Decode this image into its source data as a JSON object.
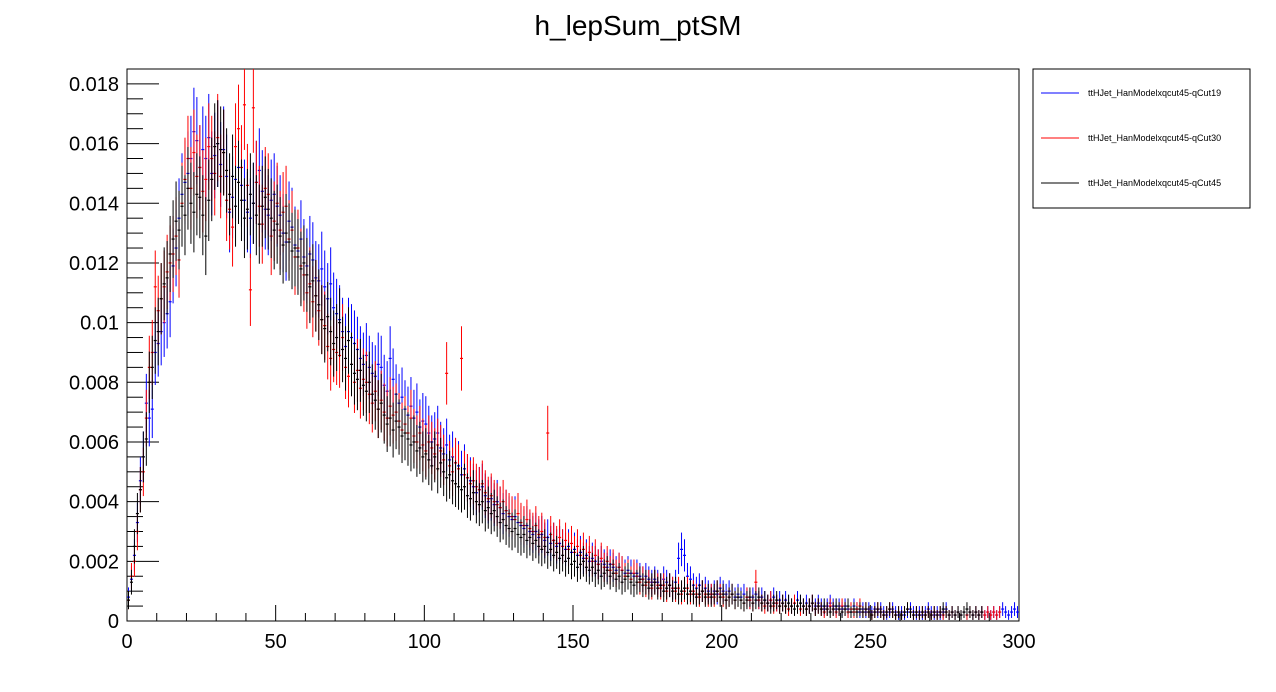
{
  "chart_data": {
    "type": "scatter",
    "title": "h_lepSum_ptSM",
    "xlabel": "",
    "ylabel": "",
    "xlim": [
      0,
      300
    ],
    "ylim": [
      0,
      0.0185
    ],
    "x_ticks": [
      0,
      50,
      100,
      150,
      200,
      250,
      300
    ],
    "x_tick_labels": [
      "0",
      "50",
      "100",
      "150",
      "200",
      "250",
      "300"
    ],
    "y_ticks": [
      0,
      0.002,
      0.004,
      0.006,
      0.008,
      0.01,
      0.012,
      0.014,
      0.016,
      0.018
    ],
    "y_tick_labels": [
      "0",
      "0.002",
      "0.004",
      "0.006",
      "0.008",
      "0.01",
      "0.012",
      "0.014",
      "0.016",
      "0.018"
    ],
    "bin_width": 1,
    "x_start": 0.5,
    "grid": false,
    "legend_position": "top-right outside plot",
    "series": [
      {
        "name": "ttHJet_HanModelxqcut45-qCut19",
        "color": "#0000ff",
        "values": [
          0.0008,
          0.0014,
          0.0022,
          0.0033,
          0.0047,
          0.0055,
          0.0073,
          0.0068,
          0.0071,
          0.009,
          0.0093,
          0.0097,
          0.01,
          0.0103,
          0.0107,
          0.0119,
          0.0125,
          0.0135,
          0.0143,
          0.0147,
          0.015,
          0.0155,
          0.0164,
          0.0161,
          0.0152,
          0.0158,
          0.0155,
          0.0162,
          0.015,
          0.0156,
          0.016,
          0.0153,
          0.0158,
          0.0149,
          0.0137,
          0.0142,
          0.0148,
          0.0152,
          0.0146,
          0.0141,
          0.0137,
          0.0135,
          0.014,
          0.0147,
          0.0151,
          0.0144,
          0.0138,
          0.0136,
          0.0141,
          0.0143,
          0.0139,
          0.0136,
          0.013,
          0.0127,
          0.0134,
          0.0132,
          0.0126,
          0.0124,
          0.0128,
          0.0122,
          0.0119,
          0.0123,
          0.0121,
          0.0115,
          0.0114,
          0.0118,
          0.0112,
          0.0108,
          0.0113,
          0.0105,
          0.0103,
          0.0101,
          0.0097,
          0.0092,
          0.0097,
          0.0095,
          0.0093,
          0.0091,
          0.0088,
          0.0086,
          0.0089,
          0.0085,
          0.0083,
          0.0082,
          0.0086,
          0.0085,
          0.0079,
          0.0077,
          0.0088,
          0.0081,
          0.0076,
          0.0073,
          0.0075,
          0.0071,
          0.0069,
          0.0072,
          0.0068,
          0.007,
          0.0065,
          0.0067,
          0.0066,
          0.0063,
          0.006,
          0.0061,
          0.0063,
          0.0058,
          0.0056,
          0.0059,
          0.0054,
          0.0055,
          0.0053,
          0.0052,
          0.0049,
          0.0051,
          0.0048,
          0.0047,
          0.0045,
          0.0043,
          0.0044,
          0.0045,
          0.0042,
          0.004,
          0.0041,
          0.0039,
          0.004,
          0.0038,
          0.0036,
          0.0037,
          0.0035,
          0.0034,
          0.0035,
          0.0033,
          0.0032,
          0.0031,
          0.0032,
          0.003,
          0.0029,
          0.003,
          0.0028,
          0.0029,
          0.0027,
          0.0028,
          0.0026,
          0.0027,
          0.0025,
          0.0026,
          0.0025,
          0.0024,
          0.0025,
          0.0023,
          0.0024,
          0.0022,
          0.0023,
          0.0021,
          0.0022,
          0.002,
          0.0021,
          0.002,
          0.0019,
          0.002,
          0.0019,
          0.0018,
          0.0019,
          0.0018,
          0.0017,
          0.0018,
          0.0017,
          0.0016,
          0.0017,
          0.0016,
          0.0015,
          0.0016,
          0.0015,
          0.0014,
          0.0015,
          0.0014,
          0.0013,
          0.0014,
          0.0013,
          0.0012,
          0.0014,
          0.0013,
          0.0012,
          0.0011,
          0.0013,
          0.0021,
          0.0024,
          0.0022,
          0.0015,
          0.0014,
          0.0012,
          0.0011,
          0.0012,
          0.001,
          0.0011,
          0.001,
          0.0009,
          0.001,
          0.0009,
          0.0011,
          0.001,
          0.0009,
          0.001,
          0.0009,
          0.0008,
          0.0009,
          0.0008,
          0.0009,
          0.0008,
          0.0007,
          0.0008,
          0.0009,
          0.0007,
          0.0008,
          0.0007,
          0.0006,
          0.0007,
          0.0008,
          0.0006,
          0.0007,
          0.0006,
          0.0007,
          0.0006,
          0.0005,
          0.0006,
          0.0007,
          0.0006,
          0.0005,
          0.0006,
          0.0005,
          0.0006,
          0.0005,
          0.0006,
          0.0005,
          0.0004,
          0.0005,
          0.0006,
          0.0005,
          0.0004,
          0.0005,
          0.0004,
          0.0005,
          0.0004,
          0.0003,
          0.0005,
          0.0004,
          0.0003,
          0.0004,
          0.0003,
          0.0004,
          0.0003,
          0.0004,
          0.0003,
          0.0004,
          0.0003,
          0.0002,
          0.0003,
          0.0004,
          0.0003,
          0.0002,
          0.0003,
          0.0002,
          0.0003,
          0.0004,
          0.0003,
          0.0002,
          0.0003,
          0.0002,
          0.0003,
          0.0004,
          0.0003,
          0.0002,
          0.0003,
          0.0002,
          0.0003,
          0.0004,
          0.0002,
          0.0003,
          0.0002,
          0.0003,
          0.0002,
          0.0003,
          0.0002,
          0.0003,
          0.0002,
          0.0003,
          0.0002,
          0.0003,
          0.0002,
          0.0003,
          0.0002,
          0.0003,
          0.0002,
          0.0003,
          0.0004,
          0.0003,
          0.0002,
          0.0003,
          0.0004,
          0.0003
        ]
      },
      {
        "name": "ttHJet_HanModelxqcut45-qCut30",
        "color": "#ff0000",
        "values": [
          0.0007,
          0.0015,
          0.002,
          0.003,
          0.0044,
          0.005,
          0.0068,
          0.0085,
          0.009,
          0.0112,
          0.0104,
          0.0108,
          0.0112,
          0.0117,
          0.012,
          0.0123,
          0.0129,
          0.0121,
          0.014,
          0.0148,
          0.0155,
          0.0145,
          0.0157,
          0.0149,
          0.0152,
          0.0144,
          0.0148,
          0.0159,
          0.0155,
          0.015,
          0.0162,
          0.0149,
          0.0157,
          0.0141,
          0.0138,
          0.0132,
          0.0159,
          0.0165,
          0.0152,
          0.0173,
          0.0146,
          0.0111,
          0.0172,
          0.0147,
          0.0139,
          0.0133,
          0.0145,
          0.0143,
          0.0129,
          0.0134,
          0.014,
          0.0131,
          0.0137,
          0.0139,
          0.0128,
          0.0131,
          0.0122,
          0.0125,
          0.0119,
          0.0116,
          0.011,
          0.0113,
          0.0107,
          0.0109,
          0.0104,
          0.0101,
          0.0099,
          0.0092,
          0.0088,
          0.0091,
          0.009,
          0.0089,
          0.0095,
          0.0085,
          0.0082,
          0.0086,
          0.008,
          0.0084,
          0.0078,
          0.0081,
          0.008,
          0.0076,
          0.0073,
          0.0077,
          0.0071,
          0.0074,
          0.007,
          0.0068,
          0.0072,
          0.0069,
          0.007,
          0.0067,
          0.0064,
          0.0066,
          0.0063,
          0.0068,
          0.0062,
          0.006,
          0.0063,
          0.0059,
          0.0057,
          0.006,
          0.0058,
          0.0056,
          0.0059,
          0.0057,
          0.0054,
          0.0083,
          0.0052,
          0.005,
          0.0053,
          0.0051,
          0.0088,
          0.0049,
          0.0048,
          0.0046,
          0.0047,
          0.0045,
          0.0044,
          0.0046,
          0.0043,
          0.0041,
          0.0042,
          0.004,
          0.0039,
          0.0038,
          0.004,
          0.0037,
          0.0036,
          0.0035,
          0.0034,
          0.0036,
          0.0033,
          0.0032,
          0.0034,
          0.0031,
          0.003,
          0.0032,
          0.0029,
          0.003,
          0.0028,
          0.0063,
          0.0029,
          0.0027,
          0.0026,
          0.0028,
          0.0025,
          0.0027,
          0.0024,
          0.0026,
          0.0023,
          0.0025,
          0.0022,
          0.0024,
          0.0021,
          0.0023,
          0.002,
          0.0022,
          0.0019,
          0.0021,
          0.0018,
          0.002,
          0.0017,
          0.0019,
          0.0016,
          0.0018,
          0.0017,
          0.0015,
          0.0016,
          0.0014,
          0.0016,
          0.0015,
          0.0013,
          0.0014,
          0.0012,
          0.0013,
          0.0011,
          0.0013,
          0.0012,
          0.0011,
          0.0012,
          0.001,
          0.0012,
          0.0011,
          0.001,
          0.0011,
          0.0009,
          0.001,
          0.0011,
          0.0009,
          0.001,
          0.0009,
          0.0008,
          0.001,
          0.0009,
          0.0008,
          0.0009,
          0.0008,
          0.001,
          0.0009,
          0.0008,
          0.0007,
          0.0008,
          0.0009,
          0.0007,
          0.0008,
          0.0007,
          0.0006,
          0.0008,
          0.0007,
          0.0006,
          0.0013,
          0.0007,
          0.0006,
          0.0005,
          0.0006,
          0.0007,
          0.0005,
          0.0006,
          0.0005,
          0.0006,
          0.0005,
          0.0004,
          0.0005,
          0.0006,
          0.0005,
          0.0004,
          0.0005,
          0.0004,
          0.0005,
          0.0006,
          0.0004,
          0.0005,
          0.0004,
          0.0003,
          0.0004,
          0.0005,
          0.0004,
          0.0003,
          0.0004,
          0.0005,
          0.0004,
          0.0003,
          0.0004,
          0.0003,
          0.0004,
          0.0005,
          0.0003,
          0.0004,
          0.0003,
          0.0002,
          0.0003,
          0.0004,
          0.0003,
          0.0002,
          0.0003,
          0.0004,
          0.0003,
          0.0002,
          0.0003,
          0.0002,
          0.0003,
          0.0004,
          0.0003,
          0.0002,
          0.0003,
          0.0002,
          0.0003,
          0.0002,
          0.0003,
          0.0002,
          0.0003,
          0.0002,
          0.0003,
          0.0002,
          0.0003,
          0.0002,
          0.0003,
          0.0002,
          0.0003,
          0.0002,
          0.0003,
          0.0002,
          0.0003,
          0.0002,
          0.0003,
          0.0002,
          0.0003,
          0.0002,
          0.0003,
          0.0002,
          0.0003,
          0.0002,
          0.0003
        ]
      },
      {
        "name": "ttHJet_HanModelxqcut45-qCut45",
        "color": "#000000",
        "values": [
          0.0007,
          0.0013,
          0.0025,
          0.0036,
          0.0044,
          0.0055,
          0.0061,
          0.008,
          0.0085,
          0.0094,
          0.0097,
          0.0108,
          0.0113,
          0.0115,
          0.0123,
          0.0128,
          0.0134,
          0.0131,
          0.0139,
          0.0136,
          0.0145,
          0.014,
          0.0137,
          0.0143,
          0.0142,
          0.0136,
          0.0129,
          0.0141,
          0.0148,
          0.0159,
          0.016,
          0.0158,
          0.0157,
          0.0151,
          0.0143,
          0.0149,
          0.0139,
          0.0147,
          0.0141,
          0.0135,
          0.0138,
          0.0143,
          0.014,
          0.0136,
          0.0133,
          0.0139,
          0.0142,
          0.0138,
          0.0135,
          0.0131,
          0.0133,
          0.0129,
          0.0126,
          0.013,
          0.0127,
          0.0124,
          0.0125,
          0.0122,
          0.0118,
          0.012,
          0.0116,
          0.0112,
          0.0114,
          0.0109,
          0.0106,
          0.0101,
          0.0098,
          0.0102,
          0.0097,
          0.0093,
          0.0095,
          0.01,
          0.0091,
          0.0088,
          0.0094,
          0.0086,
          0.0083,
          0.0081,
          0.0084,
          0.0079,
          0.0077,
          0.008,
          0.0076,
          0.0074,
          0.0071,
          0.0073,
          0.0069,
          0.0066,
          0.0068,
          0.0064,
          0.0067,
          0.0065,
          0.0062,
          0.0063,
          0.0061,
          0.0059,
          0.006,
          0.0057,
          0.0058,
          0.0055,
          0.0056,
          0.0054,
          0.0052,
          0.0055,
          0.0051,
          0.0053,
          0.005,
          0.0048,
          0.0049,
          0.0047,
          0.0046,
          0.0045,
          0.0044,
          0.0045,
          0.0042,
          0.0041,
          0.0043,
          0.004,
          0.0039,
          0.004,
          0.0037,
          0.0038,
          0.0036,
          0.0037,
          0.0035,
          0.0033,
          0.0034,
          0.0032,
          0.0031,
          0.003,
          0.0031,
          0.0029,
          0.0028,
          0.0029,
          0.0027,
          0.0028,
          0.0026,
          0.0027,
          0.0025,
          0.0024,
          0.0025,
          0.0023,
          0.0024,
          0.0022,
          0.0023,
          0.0021,
          0.0022,
          0.002,
          0.0021,
          0.0019,
          0.002,
          0.0018,
          0.0019,
          0.002,
          0.0018,
          0.0017,
          0.0018,
          0.0016,
          0.0017,
          0.0015,
          0.0016,
          0.0017,
          0.0015,
          0.0016,
          0.0014,
          0.0015,
          0.0013,
          0.0014,
          0.0015,
          0.0013,
          0.0012,
          0.0013,
          0.0014,
          0.0012,
          0.0013,
          0.0011,
          0.0012,
          0.0013,
          0.0011,
          0.0012,
          0.001,
          0.0011,
          0.0012,
          0.001,
          0.0011,
          0.0009,
          0.001,
          0.0011,
          0.0009,
          0.001,
          0.0009,
          0.0008,
          0.0009,
          0.001,
          0.0008,
          0.0009,
          0.0008,
          0.0009,
          0.001,
          0.0008,
          0.0009,
          0.0007,
          0.0008,
          0.0009,
          0.0007,
          0.0008,
          0.0007,
          0.0006,
          0.0007,
          0.0008,
          0.0006,
          0.0007,
          0.0008,
          0.0006,
          0.0007,
          0.0006,
          0.0005,
          0.0006,
          0.0007,
          0.0005,
          0.0006,
          0.0005,
          0.0006,
          0.0005,
          0.0004,
          0.0005,
          0.0006,
          0.0005,
          0.0004,
          0.0005,
          0.0006,
          0.0004,
          0.0005,
          0.0004,
          0.0005,
          0.0004,
          0.0003,
          0.0004,
          0.0005,
          0.0004,
          0.0003,
          0.0004,
          0.0005,
          0.0003,
          0.0004,
          0.0003,
          0.0004,
          0.0003,
          0.0004,
          0.0003,
          0.0002,
          0.0003,
          0.0004,
          0.0003,
          0.0002,
          0.0003,
          0.0004,
          0.0003,
          0.0002,
          0.0003,
          0.0002,
          0.0003,
          0.0004,
          0.0003,
          0.0002,
          0.0003,
          0.0002,
          0.0003,
          0.0002,
          0.0003,
          0.0002,
          0.0003,
          0.0002,
          0.0003,
          0.0004,
          0.0003,
          0.0002,
          0.0003,
          0.0002,
          0.0003,
          0.0002,
          0.0003,
          0.0004,
          0.0003,
          0.0002,
          0.0003,
          0.0002,
          0.0003
        ]
      }
    ]
  }
}
